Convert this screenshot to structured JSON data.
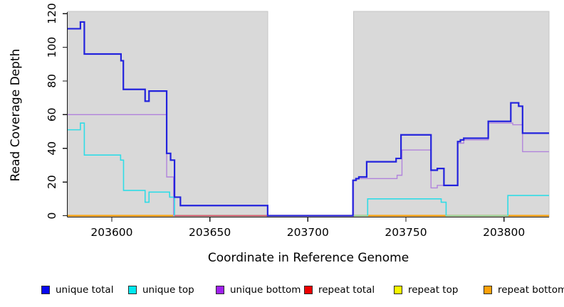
{
  "page": {
    "background": "#ffffff"
  },
  "chart_data": {
    "type": "line",
    "step_interpolation": true,
    "title": "",
    "xlabel": "Coordinate in Reference Genome",
    "ylabel": "Read Coverage Depth",
    "xlim": [
      203577.5,
      203823
    ],
    "ylim": [
      0,
      120
    ],
    "xticks": [
      203600,
      203650,
      203700,
      203750,
      203800
    ],
    "yticks": [
      0,
      20,
      40,
      60,
      80,
      100,
      120
    ],
    "grid": false,
    "legend_position": "bottom",
    "shaded_regions": [
      {
        "x0": 203577.5,
        "x1": 203679.5,
        "color": "#d9d9d9"
      },
      {
        "x0": 203723.3,
        "x1": 203823,
        "color": "#d9d9d9"
      }
    ],
    "series": [
      {
        "name": "unique total",
        "color": "#2323dd",
        "width": 2.2,
        "z": 7,
        "points": [
          [
            203577.5,
            111
          ],
          [
            203584,
            115
          ],
          [
            203586,
            96
          ],
          [
            203604.7,
            92
          ],
          [
            203605.9,
            75
          ],
          [
            203617,
            68
          ],
          [
            203619,
            74
          ],
          [
            203628,
            37
          ],
          [
            203630,
            33
          ],
          [
            203632,
            11
          ],
          [
            203635,
            6
          ],
          [
            203679.5,
            0
          ],
          [
            203723,
            21
          ],
          [
            203724.5,
            22
          ],
          [
            203726,
            23
          ],
          [
            203730,
            32
          ],
          [
            203745,
            34
          ],
          [
            203747.5,
            48
          ],
          [
            203762.8,
            27
          ],
          [
            203766,
            28
          ],
          [
            203769.4,
            18
          ],
          [
            203776.4,
            44
          ],
          [
            203777.8,
            45
          ],
          [
            203779.5,
            46
          ],
          [
            203792,
            56
          ],
          [
            203803.5,
            67
          ],
          [
            203807.5,
            65
          ],
          [
            203809.5,
            49
          ],
          [
            203823,
            49
          ]
        ]
      },
      {
        "name": "unique top",
        "color": "#30dce6",
        "width": 1.6,
        "z": 5,
        "points": [
          [
            203577.5,
            51
          ],
          [
            203584,
            55
          ],
          [
            203586,
            36
          ],
          [
            203604.5,
            33
          ],
          [
            203606,
            15
          ],
          [
            203617,
            8
          ],
          [
            203619,
            14
          ],
          [
            203629.5,
            11
          ],
          [
            203632,
            0
          ],
          [
            203730.5,
            10
          ],
          [
            203768,
            8
          ],
          [
            203770.5,
            0
          ],
          [
            203802,
            12
          ],
          [
            203823,
            12
          ]
        ]
      },
      {
        "name": "unique bottom",
        "color": "#b183dc",
        "width": 1.4,
        "z": 4,
        "points": [
          [
            203577.5,
            60
          ],
          [
            203628,
            23
          ],
          [
            203631.5,
            0
          ],
          [
            203723.3,
            21
          ],
          [
            203725,
            22
          ],
          [
            203745.5,
            24
          ],
          [
            203748,
            39
          ],
          [
            203762.8,
            16.5
          ],
          [
            203766,
            18
          ],
          [
            203776.4,
            43
          ],
          [
            203779.5,
            45
          ],
          [
            203792,
            55
          ],
          [
            203804.5,
            54
          ],
          [
            203809.5,
            38
          ],
          [
            203823,
            38
          ]
        ]
      },
      {
        "name": "repeat total",
        "color": "#e02222",
        "width": 1.4,
        "z": 1,
        "points": [
          [
            203577.5,
            0
          ],
          [
            203823,
            0
          ]
        ]
      },
      {
        "name": "repeat top",
        "color": "#f2f200",
        "width": 1.4,
        "z": 2,
        "points": [
          [
            203577.5,
            0
          ],
          [
            203823,
            0
          ]
        ]
      },
      {
        "name": "repeat bottom",
        "color": "#ff9d0a",
        "width": 2.2,
        "z": 3,
        "points": [
          [
            203577.5,
            0
          ],
          [
            203823,
            0
          ]
        ]
      }
    ],
    "baseline_overlays": [
      {
        "x0": 203632,
        "x1": 203679.5,
        "y": 0,
        "color": "#d5476f"
      },
      {
        "x0": 203723.3,
        "x1": 203730.5,
        "y": 0,
        "color": "#8fd3a0"
      },
      {
        "x0": 203770.5,
        "x1": 203802,
        "y": 0,
        "color": "#8fd3a0"
      }
    ]
  },
  "legend": {
    "items": [
      {
        "label": "unique total",
        "color": "#0808f0"
      },
      {
        "label": "unique top",
        "color": "#00e8f0"
      },
      {
        "label": "unique bottom",
        "color": "#a020f0"
      },
      {
        "label": "repeat total",
        "color": "#ee0000"
      },
      {
        "label": "repeat top",
        "color": "#f8f800"
      },
      {
        "label": "repeat bottom",
        "color": "#ffa10a"
      }
    ]
  }
}
